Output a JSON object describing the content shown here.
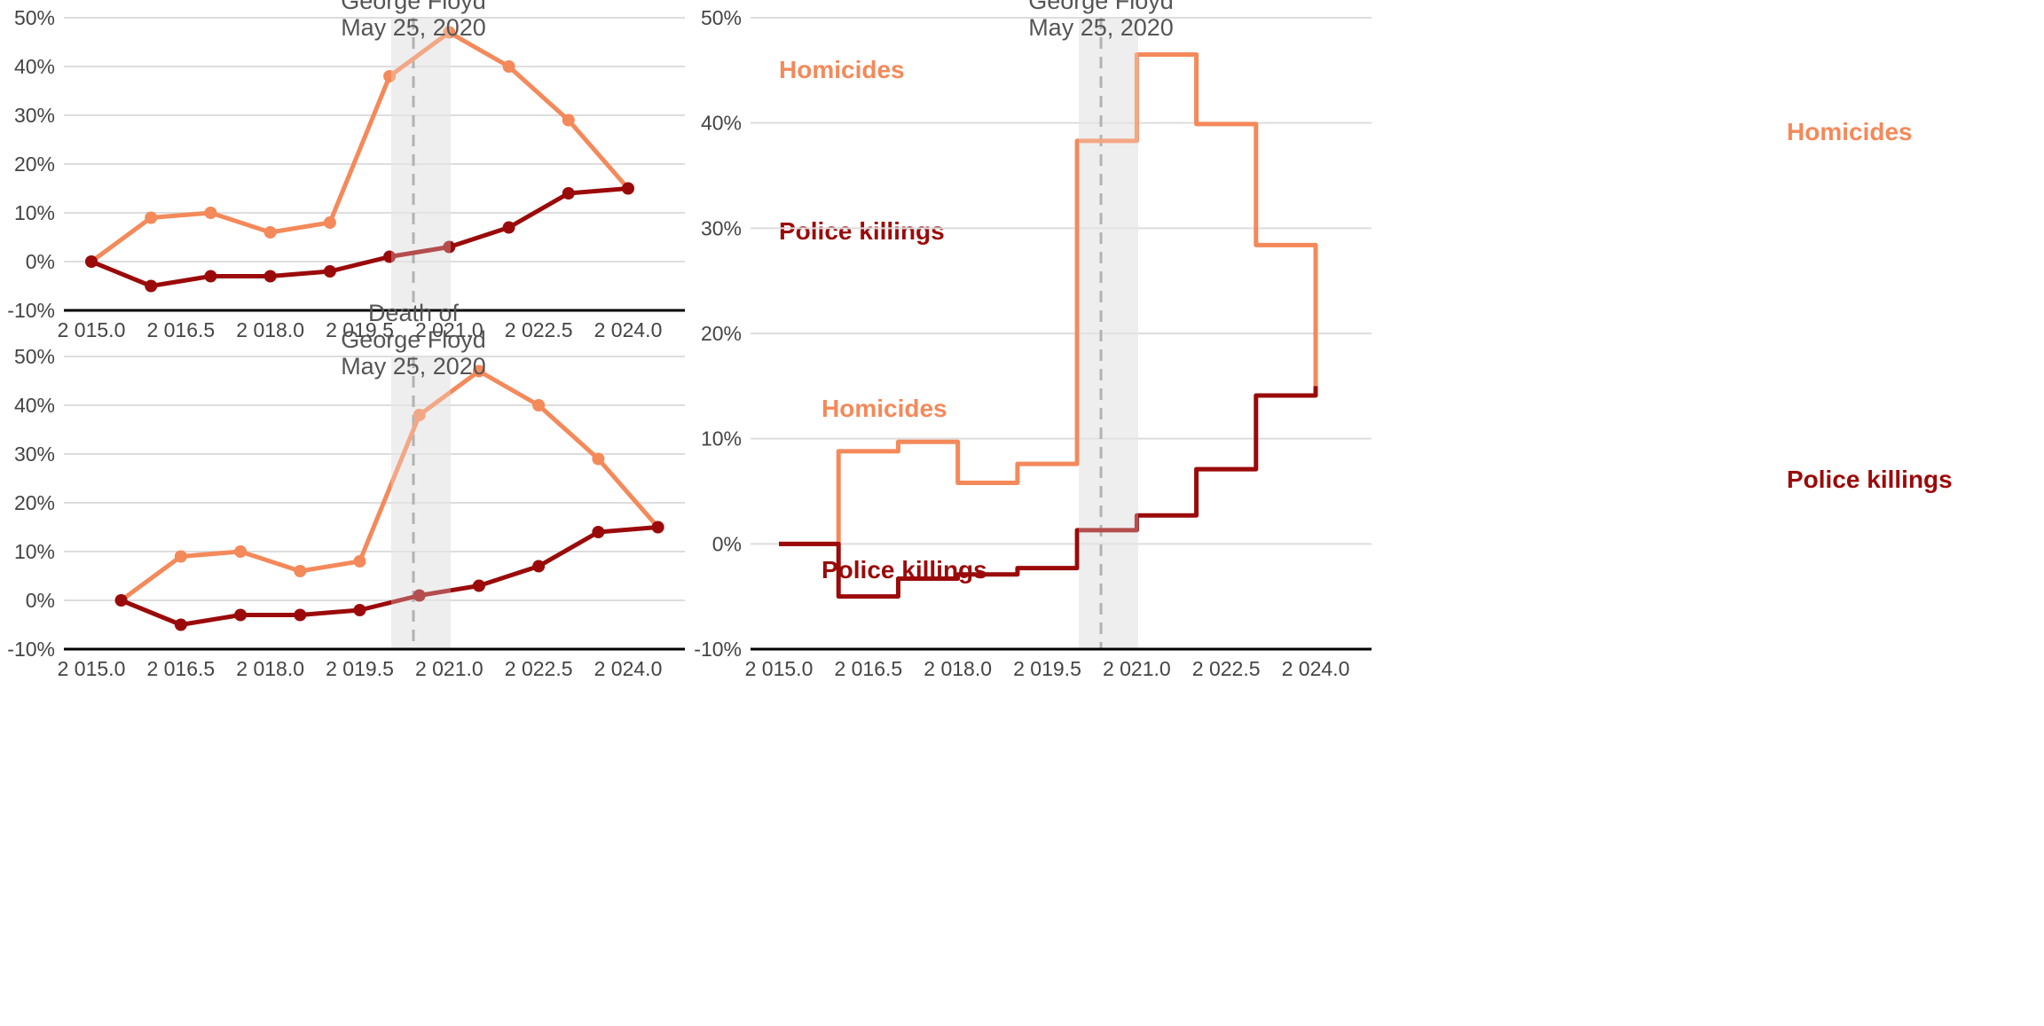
{
  "chart_data": [
    {
      "id": "top-left",
      "type": "line",
      "x": [
        2015.0,
        2016.0,
        2017.0,
        2018.0,
        2019.0,
        2020.0,
        2021.0,
        2022.0,
        2023.0,
        2024.0
      ],
      "series": [
        {
          "name": "Homicides",
          "color": "#f4895a",
          "values": [
            0,
            9,
            10,
            6,
            8,
            38,
            47,
            40,
            29,
            15
          ]
        },
        {
          "name": "Police killings",
          "color": "#9b0a0a",
          "values": [
            0,
            -5,
            -3,
            -3,
            -2,
            1,
            3,
            7,
            14,
            15
          ]
        }
      ],
      "xlim": [
        2015.0,
        2024.0
      ],
      "ylim": [
        -10,
        50
      ],
      "xticks": [
        "2 015.0",
        "2 016.5",
        "2 018.0",
        "2 019.5",
        "2 021.0",
        "2 022.5",
        "2 024.0"
      ],
      "yticks": [
        "-10%",
        "0%",
        "10%",
        "20%",
        "30%",
        "40%",
        "50%"
      ],
      "event": {
        "lines": [
          "George Floyd",
          "May 25, 2020"
        ],
        "x": 2020.4
      },
      "title": "",
      "xlabel": "",
      "ylabel": ""
    },
    {
      "id": "bottom-left",
      "type": "line",
      "x": [
        2015.5,
        2016.5,
        2017.5,
        2018.5,
        2019.5,
        2020.5,
        2021.5,
        2022.5,
        2023.5,
        2024.5
      ],
      "series": [
        {
          "name": "Homicides",
          "color": "#f4895a",
          "values": [
            0,
            9,
            10,
            6,
            8,
            38,
            47,
            40,
            29,
            15
          ]
        },
        {
          "name": "Police killings",
          "color": "#9b0a0a",
          "values": [
            0,
            -5,
            -3,
            -3,
            -2,
            1,
            3,
            7,
            14,
            15
          ]
        }
      ],
      "xlim": [
        2015.0,
        2024.0
      ],
      "ylim": [
        -10,
        50
      ],
      "xticks": [
        "2 015.0",
        "2 016.5",
        "2 018.0",
        "2 019.5",
        "2 021.0",
        "2 022.5",
        "2 024.0"
      ],
      "yticks": [
        "-10%",
        "0%",
        "10%",
        "20%",
        "30%",
        "40%",
        "50%"
      ],
      "event": {
        "lines": [
          "Death of",
          "George Floyd",
          "May 25, 2020"
        ],
        "x": 2020.4
      },
      "title": "",
      "xlabel": "",
      "ylabel": ""
    },
    {
      "id": "right",
      "type": "line",
      "step": true,
      "x": [
        2015.0,
        2016.0,
        2017.0,
        2018.0,
        2019.0,
        2020.0,
        2021.0,
        2022.0,
        2023.0,
        2024.0
      ],
      "series": [
        {
          "name": "Homicides",
          "color": "#f4895a",
          "values": [
            0,
            8.8,
            9.7,
            5.8,
            7.6,
            38.3,
            46.5,
            39.9,
            28.4,
            15
          ]
        },
        {
          "name": "Police killings",
          "color": "#9b0a0a",
          "values": [
            0,
            -5,
            -3.3,
            -2.9,
            -2.3,
            1.3,
            2.7,
            7.1,
            14.1,
            15
          ]
        }
      ],
      "xlim": [
        2015.0,
        2024.0
      ],
      "ylim": [
        -10,
        50
      ],
      "xticks": [
        "2 015.0",
        "2 016.5",
        "2 018.0",
        "2 019.5",
        "2 021.0",
        "2 022.5",
        "2 024.0"
      ],
      "yticks": [
        "-10%",
        "0%",
        "10%",
        "20%",
        "30%",
        "40%",
        "50%"
      ],
      "event": {
        "lines": [
          "George Floyd",
          "May 25, 2020"
        ],
        "x": 2020.4
      },
      "title": "",
      "xlabel": "",
      "ylabel": ""
    }
  ]
}
